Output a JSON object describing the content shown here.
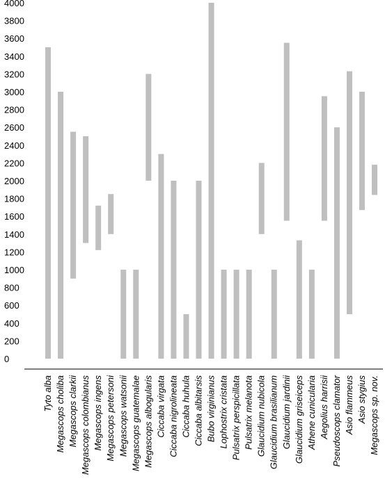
{
  "chart_data": {
    "type": "floating-bar",
    "categories": [
      "Tyto alba",
      "Megascops choliba",
      "Megascops clarkii",
      "Megascops colombianus",
      "Megascops ingens",
      "Megascops petersoni",
      "Megascops watsonii",
      "Megascops guatemalae",
      "Megascops albogularis",
      "Ciccaba virgata",
      "Ciccaba nigrolineata",
      "Ciccaba huhula",
      "Ciccaba albitarsis",
      "Bubo virginianus",
      "Lophostrix cristata",
      "Pulsatrix perspicillata",
      "Pulsatrix melanota",
      "Glaucidium nubicola",
      "Glaucidium brasilianum",
      "Glaucidium jardinii",
      "Glaucidium griseiceps",
      "Athene cunicularia",
      "Aegolius harrisii",
      "Pseudoscops clamator",
      "Asio flammeus",
      "Asio stygius",
      "Megascops sp. nov."
    ],
    "low": [
      0,
      0,
      900,
      1300,
      1220,
      1400,
      0,
      0,
      2000,
      0,
      0,
      0,
      0,
      0,
      0,
      0,
      0,
      1400,
      0,
      1550,
      0,
      0,
      1550,
      0,
      500,
      1670,
      1840
    ],
    "high": [
      3500,
      3000,
      2550,
      2500,
      1720,
      1850,
      1000,
      1000,
      3200,
      2300,
      2000,
      500,
      2000,
      4000,
      1000,
      1000,
      1000,
      2200,
      1000,
      3550,
      1330,
      1000,
      2950,
      2600,
      3230,
      3000,
      2180
    ],
    "color": "#bfbfbf",
    "ylim": [
      -117,
      4031
    ],
    "yticks": [
      0,
      200,
      400,
      600,
      800,
      1000,
      1200,
      1400,
      1600,
      1800,
      2000,
      2200,
      2400,
      2600,
      2800,
      3000,
      3200,
      3400,
      3600,
      3800,
      4000
    ]
  }
}
